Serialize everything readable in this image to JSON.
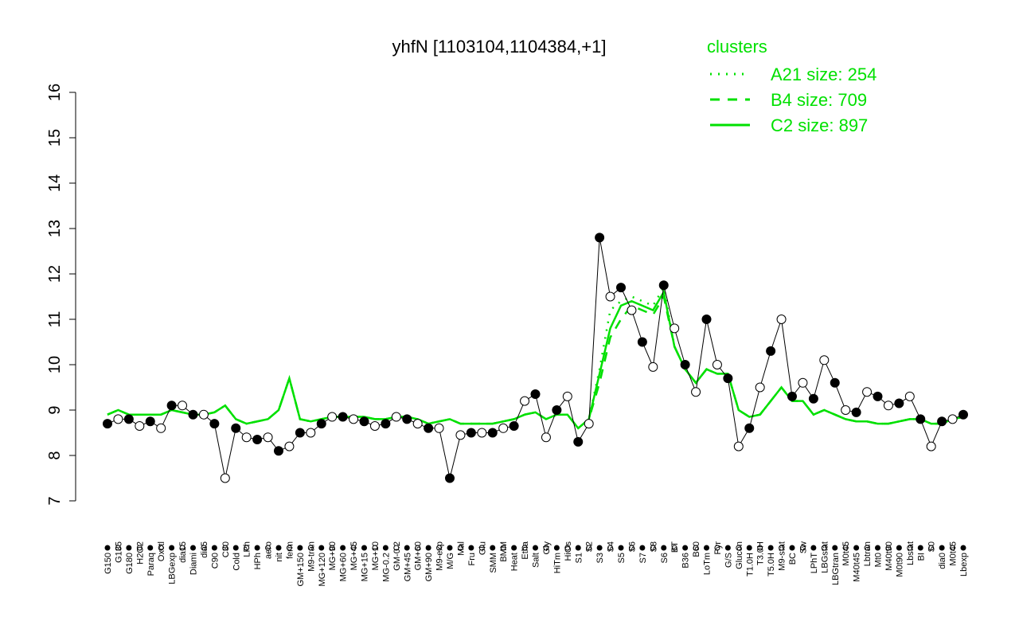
{
  "chart_data": {
    "type": "line",
    "title": "yhfN [1103104,1104384,+1]",
    "legend_title": "clusters",
    "legend_position": "top-right",
    "ylim": [
      7,
      16
    ],
    "yticks": [
      7,
      8,
      9,
      10,
      11,
      12,
      13,
      14,
      15,
      16
    ],
    "categories": [
      "G150",
      "G135",
      "G180",
      "H2O2",
      "Paraq",
      "Oxctl",
      "LBGexp",
      "dia15",
      "Diami",
      "dia5",
      "C90",
      "C30",
      "Cold",
      "LPh",
      "HPh",
      "aero",
      "nit",
      "ferm",
      "GM+150",
      "M9-tran",
      "MG+120",
      "MG+90",
      "MG+60",
      "MG+45",
      "MG+15",
      "MG+10",
      "MG-0.2",
      "GM-0.2",
      "GM+45",
      "GM+60",
      "GM+90",
      "M9-exp",
      "M/G",
      "Mal",
      "Fru",
      "Glu",
      "SMM",
      "BMM",
      "Heat",
      "Etha",
      "Salt",
      "Gly",
      "HiTm",
      "HiOs",
      "S1",
      "S2",
      "S3",
      "S4",
      "S5",
      "S6",
      "S7",
      "S8",
      "S6",
      "BT",
      "B36",
      "B60",
      "LoTm",
      "Pyr",
      "G/S",
      "Glucon",
      "T1.0H",
      "T3.0H",
      "T5.0H",
      "M9-stat",
      "BC",
      "Sw",
      "LPhT",
      "LBGstat",
      "LBGtran",
      "M0t45",
      "M40t45",
      "Lbtran",
      "Mt0",
      "M40t90",
      "M0t90",
      "Lbstat",
      "BI",
      "S0",
      "dia0",
      "M0t45",
      "Lbexp"
    ],
    "points": {
      "color": "#000000",
      "values": [
        8.7,
        8.8,
        8.8,
        8.65,
        8.75,
        8.6,
        9.1,
        9.1,
        8.9,
        8.9,
        8.7,
        7.5,
        8.6,
        8.4,
        8.35,
        8.4,
        8.1,
        8.2,
        8.5,
        8.5,
        8.7,
        8.85,
        8.85,
        8.8,
        8.75,
        8.65,
        8.7,
        8.85,
        8.8,
        8.7,
        8.6,
        8.6,
        7.5,
        8.45,
        8.5,
        8.5,
        8.5,
        8.6,
        8.65,
        9.2,
        9.35,
        8.4,
        9.0,
        9.3,
        8.3,
        8.7,
        12.8,
        11.5,
        11.7,
        11.2,
        10.5,
        9.95,
        11.75,
        10.8,
        10.0,
        9.4,
        11.0,
        10.0,
        9.7,
        8.2,
        8.6,
        9.5,
        10.3,
        11.0,
        9.3,
        9.6,
        9.25,
        10.1,
        9.6,
        9.0,
        8.95,
        9.4,
        9.3,
        9.1,
        9.15,
        9.3,
        8.8,
        8.2,
        8.75,
        8.8,
        8.9
      ]
    },
    "series": [
      {
        "name": "A21 size: 254",
        "color": "#00e000",
        "linestyle": "dotted",
        "values": [
          8.9,
          9.0,
          8.9,
          8.9,
          8.9,
          8.9,
          9.0,
          8.95,
          8.9,
          8.9,
          8.95,
          9.1,
          8.8,
          8.7,
          8.75,
          8.8,
          9.0,
          9.7,
          8.8,
          8.75,
          8.8,
          8.85,
          8.85,
          8.85,
          8.85,
          8.8,
          8.8,
          8.85,
          8.85,
          8.8,
          8.7,
          8.75,
          8.8,
          8.7,
          8.7,
          8.7,
          8.7,
          8.75,
          8.8,
          8.9,
          8.95,
          8.8,
          8.9,
          8.9,
          8.6,
          8.8,
          9.9,
          11.2,
          11.4,
          11.5,
          11.4,
          11.3,
          11.7,
          10.4,
          9.9,
          9.6,
          9.9,
          9.8,
          9.8,
          9.0,
          8.85,
          8.9,
          9.2,
          9.5,
          9.2,
          9.2,
          8.9,
          9.0,
          8.9,
          8.8,
          8.75,
          8.75,
          8.7,
          8.7,
          8.75,
          8.8,
          8.8,
          8.7,
          8.7,
          8.8,
          8.85
        ]
      },
      {
        "name": "B4 size: 709",
        "color": "#00e000",
        "linestyle": "dashed",
        "values": [
          8.9,
          9.0,
          8.9,
          8.9,
          8.9,
          8.9,
          9.0,
          8.95,
          8.9,
          8.9,
          8.95,
          9.1,
          8.8,
          8.7,
          8.75,
          8.8,
          9.0,
          9.7,
          8.8,
          8.75,
          8.8,
          8.85,
          8.85,
          8.85,
          8.85,
          8.8,
          8.8,
          8.85,
          8.85,
          8.8,
          8.7,
          8.75,
          8.8,
          8.7,
          8.7,
          8.7,
          8.7,
          8.75,
          8.8,
          8.9,
          8.95,
          8.8,
          8.9,
          8.9,
          8.6,
          8.8,
          9.6,
          10.6,
          11.0,
          11.3,
          11.2,
          11.1,
          11.5,
          10.4,
          9.9,
          9.6,
          9.9,
          9.8,
          9.8,
          9.0,
          8.85,
          8.9,
          9.2,
          9.5,
          9.2,
          9.2,
          8.9,
          9.0,
          8.9,
          8.8,
          8.75,
          8.75,
          8.7,
          8.7,
          8.75,
          8.8,
          8.8,
          8.7,
          8.7,
          8.8,
          8.85
        ]
      },
      {
        "name": "C2 size: 897",
        "color": "#00e000",
        "linestyle": "solid",
        "values": [
          8.9,
          9.0,
          8.9,
          8.9,
          8.9,
          8.9,
          9.0,
          8.95,
          8.9,
          8.9,
          8.95,
          9.1,
          8.8,
          8.7,
          8.75,
          8.8,
          9.0,
          9.7,
          8.8,
          8.75,
          8.8,
          8.85,
          8.85,
          8.85,
          8.85,
          8.8,
          8.8,
          8.85,
          8.85,
          8.8,
          8.7,
          8.75,
          8.8,
          8.7,
          8.7,
          8.7,
          8.7,
          8.75,
          8.8,
          8.9,
          8.95,
          8.8,
          8.9,
          8.9,
          8.6,
          8.8,
          9.8,
          10.8,
          11.3,
          11.4,
          11.3,
          11.2,
          11.6,
          10.4,
          9.9,
          9.6,
          9.9,
          9.8,
          9.8,
          9.0,
          8.85,
          8.9,
          9.2,
          9.5,
          9.2,
          9.2,
          8.9,
          9.0,
          8.9,
          8.8,
          8.75,
          8.75,
          8.7,
          8.7,
          8.75,
          8.8,
          8.8,
          8.7,
          8.7,
          8.8,
          8.85
        ]
      }
    ]
  }
}
